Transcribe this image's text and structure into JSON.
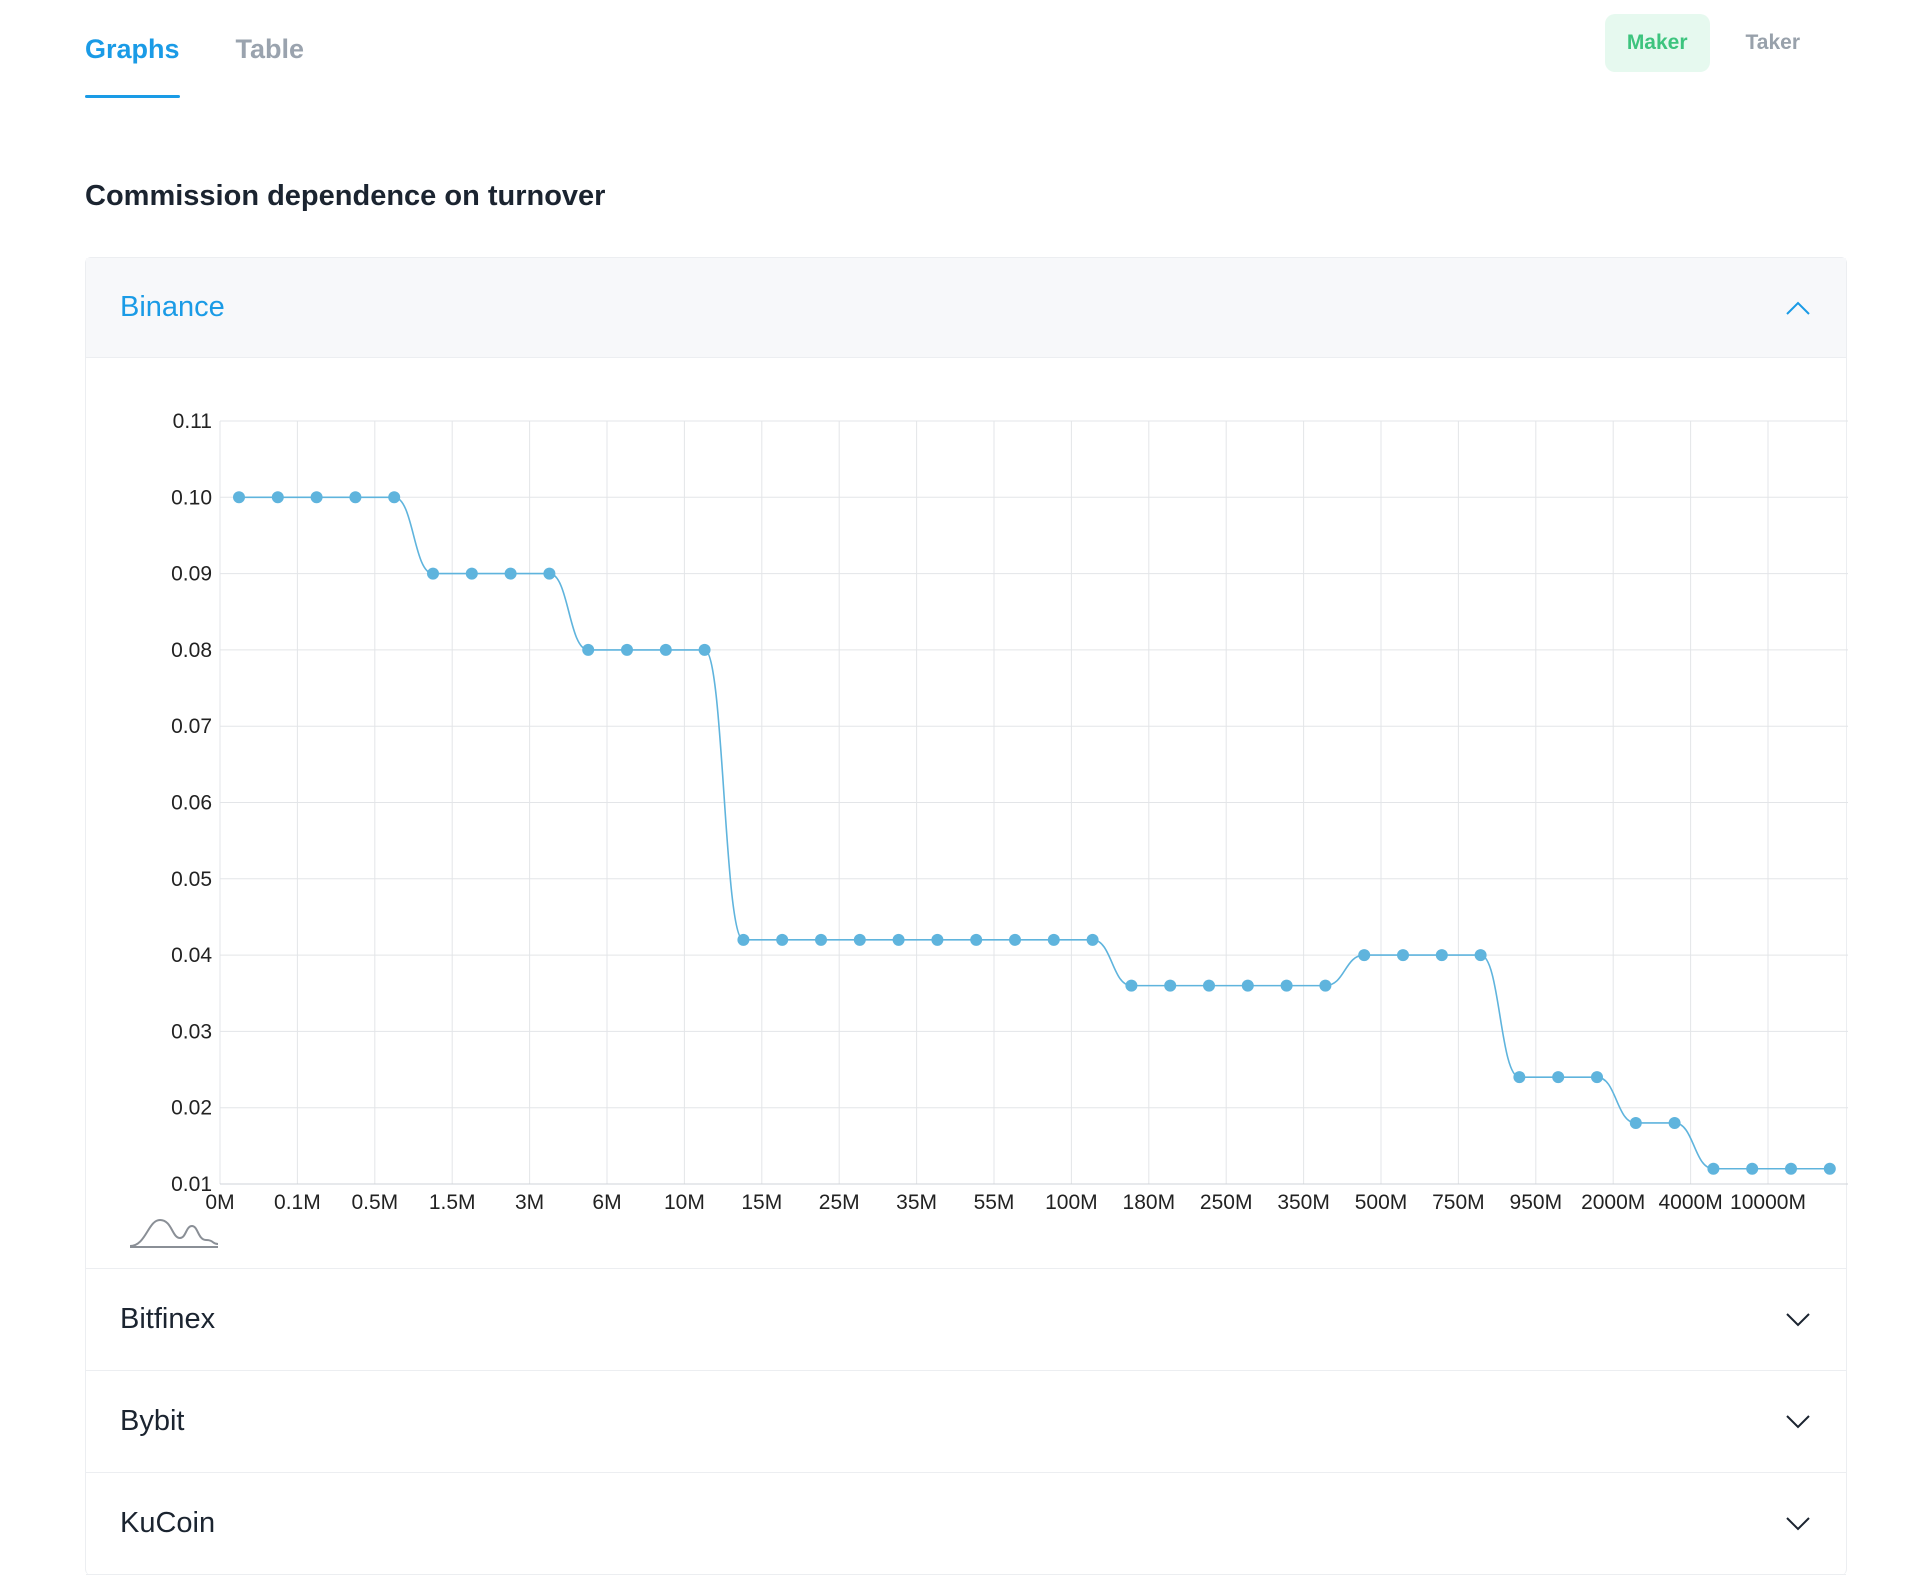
{
  "tabs": [
    {
      "label": "Graphs",
      "active": true
    },
    {
      "label": "Table",
      "active": false
    }
  ],
  "mode": {
    "maker_label": "Maker",
    "taker_label": "Taker",
    "selected": "Maker"
  },
  "page_title": "Commission dependence on turnover",
  "exchanges": [
    {
      "name": "Binance",
      "expanded": true
    },
    {
      "name": "Bitfinex",
      "expanded": false
    },
    {
      "name": "Bybit",
      "expanded": false
    },
    {
      "name": "KuCoin",
      "expanded": false
    }
  ],
  "colors": {
    "accent": "#1a9be6",
    "series": "#5fb4dd",
    "maker_bg": "#e6f9ef",
    "maker_text": "#3dc47e"
  },
  "chart_data": {
    "type": "line",
    "title": "",
    "xlabel": "",
    "ylabel": "",
    "ylim": [
      0.01,
      0.11
    ],
    "y_ticks": [
      "0.11",
      "0.10",
      "0.09",
      "0.08",
      "0.07",
      "0.06",
      "0.05",
      "0.04",
      "0.03",
      "0.02",
      "0.01"
    ],
    "x_tick_labels": [
      "0M",
      "0.1M",
      "0.5M",
      "1.5M",
      "3M",
      "6M",
      "10M",
      "15M",
      "25M",
      "35M",
      "55M",
      "100M",
      "180M",
      "250M",
      "350M",
      "500M",
      "750M",
      "950M",
      "2000M",
      "4000M",
      "10000M"
    ],
    "grid": true,
    "legend": "none",
    "series": [
      {
        "values": [
          0.1,
          0.1,
          0.1,
          0.1,
          0.1,
          0.09,
          0.09,
          0.09,
          0.09,
          0.08,
          0.08,
          0.08,
          0.08,
          0.042,
          0.042,
          0.042,
          0.042,
          0.042,
          0.042,
          0.042,
          0.042,
          0.042,
          0.042,
          0.036,
          0.036,
          0.036,
          0.036,
          0.036,
          0.036,
          0.04,
          0.04,
          0.04,
          0.04,
          0.024,
          0.024,
          0.024,
          0.018,
          0.018,
          0.012,
          0.012,
          0.012,
          0.012
        ]
      }
    ]
  }
}
